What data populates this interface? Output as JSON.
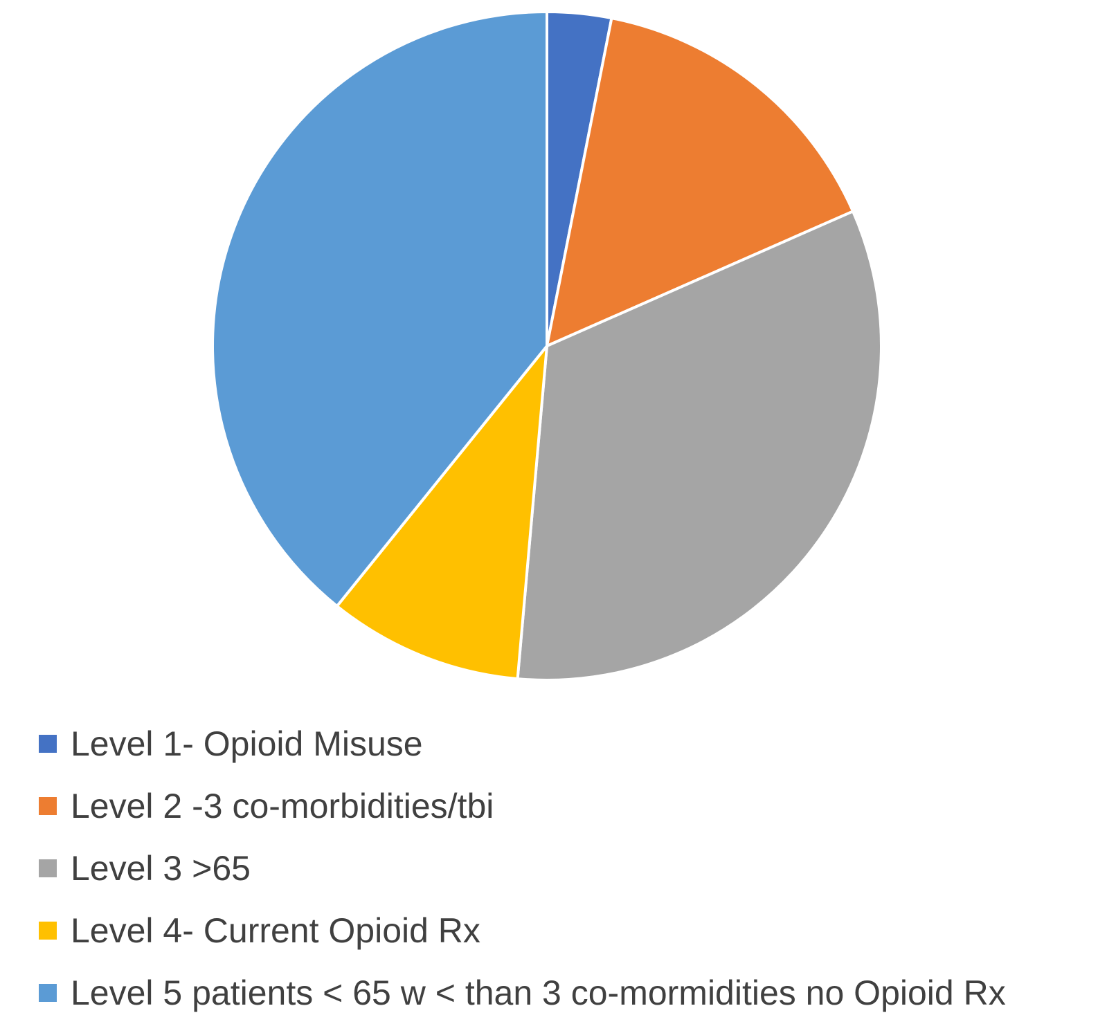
{
  "chart_data": {
    "type": "pie",
    "title": "",
    "start_angle_deg": 0,
    "direction": "clockwise",
    "slices": [
      {
        "label": "Level 1- Opioid Misuse",
        "value": 3.1,
        "color": "#4472C4"
      },
      {
        "label": "Level 2 -3 co-morbidities/tbi",
        "value": 15.3,
        "color": "#ED7D31"
      },
      {
        "label": "Level 3 >65",
        "value": 33.0,
        "color": "#A5A5A5"
      },
      {
        "label": "Level 4- Current Opioid Rx",
        "value": 9.4,
        "color": "#FFC000"
      },
      {
        "label": "Level 5 patients < 65 w < than 3 co-mormidities no Opioid Rx",
        "value": 39.2,
        "color": "#5B9BD5"
      }
    ],
    "legend_position": "bottom"
  }
}
